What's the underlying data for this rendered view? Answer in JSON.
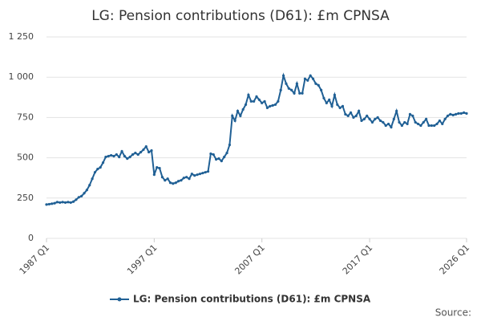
{
  "chart_data": {
    "type": "line",
    "title": "LG: Pension contributions (D61): £m CPNSA",
    "source_label": "Source:",
    "categories": [
      "1987 Q1",
      null,
      null,
      null,
      null,
      null,
      null,
      null,
      null,
      null,
      null,
      null,
      null,
      null,
      null,
      null,
      null,
      null,
      null,
      null,
      null,
      null,
      null,
      null,
      null,
      null,
      null,
      null,
      null,
      null,
      null,
      null,
      null,
      null,
      null,
      null,
      null,
      null,
      null,
      null,
      "1997 Q1",
      null,
      null,
      null,
      null,
      null,
      null,
      null,
      null,
      null,
      null,
      null,
      null,
      null,
      null,
      null,
      null,
      null,
      null,
      null,
      null,
      null,
      null,
      null,
      null,
      null,
      null,
      null,
      null,
      null,
      null,
      null,
      null,
      null,
      null,
      null,
      null,
      null,
      null,
      null,
      "2007 Q1",
      null,
      null,
      null,
      null,
      null,
      null,
      null,
      null,
      null,
      null,
      null,
      null,
      null,
      null,
      null,
      null,
      null,
      null,
      null,
      null,
      null,
      null,
      null,
      null,
      null,
      null,
      null,
      null,
      null,
      null,
      null,
      null,
      null,
      null,
      null,
      null,
      null,
      null,
      null,
      "2017 Q1",
      null,
      null,
      null,
      null,
      null,
      null,
      null,
      null,
      null,
      null,
      null,
      null,
      null,
      null,
      null,
      null,
      null,
      null,
      null,
      null,
      null,
      null,
      null,
      null,
      null,
      null,
      null,
      null,
      null,
      null,
      null,
      null,
      null,
      null,
      null,
      "2026 Q1"
    ],
    "series": [
      {
        "name": "LG: Pension contributions (D61): £m CPNSA",
        "color": "#206095",
        "values": [
          210,
          212,
          215,
          218,
          225,
          222,
          225,
          222,
          225,
          222,
          228,
          240,
          255,
          262,
          280,
          300,
          330,
          370,
          410,
          430,
          440,
          470,
          505,
          510,
          515,
          510,
          520,
          505,
          540,
          510,
          495,
          505,
          520,
          530,
          520,
          535,
          550,
          570,
          535,
          545,
          395,
          440,
          435,
          380,
          360,
          370,
          345,
          340,
          345,
          355,
          360,
          375,
          380,
          370,
          400,
          390,
          395,
          400,
          405,
          410,
          415,
          525,
          520,
          490,
          495,
          480,
          505,
          530,
          580,
          760,
          730,
          790,
          760,
          800,
          830,
          890,
          850,
          850,
          880,
          860,
          840,
          850,
          810,
          820,
          825,
          830,
          850,
          920,
          1010,
          960,
          930,
          920,
          900,
          960,
          900,
          900,
          990,
          980,
          1010,
          990,
          960,
          950,
          920,
          870,
          840,
          860,
          820,
          890,
          830,
          810,
          820,
          770,
          760,
          780,
          750,
          760,
          790,
          730,
          740,
          760,
          740,
          720,
          740,
          750,
          730,
          720,
          700,
          710,
          690,
          740,
          790,
          720,
          700,
          720,
          710,
          770,
          760,
          720,
          710,
          700,
          720,
          740,
          700,
          700,
          700,
          710,
          730,
          710,
          740,
          760,
          770,
          765,
          770,
          775,
          775,
          780,
          775
        ]
      }
    ],
    "ylim": [
      0,
      1250
    ],
    "yticks": [
      0,
      250,
      500,
      750,
      {
        "value": 1000,
        "label": "1 000"
      },
      {
        "value": 1250,
        "label": "1 250"
      }
    ],
    "grid": true
  }
}
